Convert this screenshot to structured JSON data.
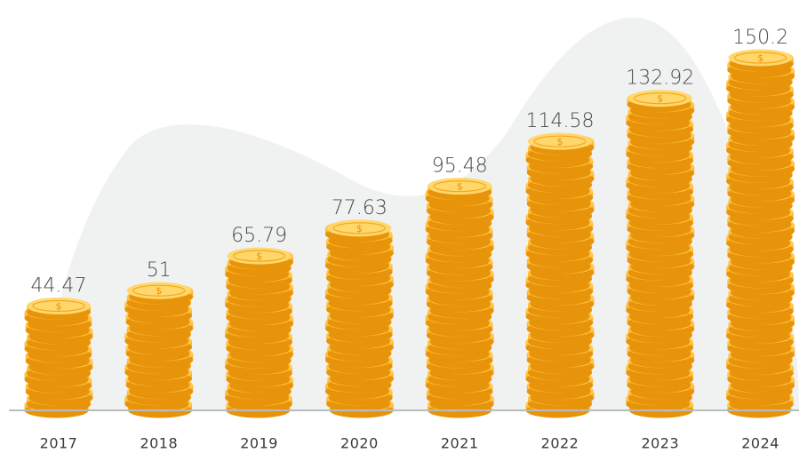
{
  "chart_data": {
    "type": "bar",
    "categories": [
      "2017",
      "2018",
      "2019",
      "2020",
      "2021",
      "2022",
      "2023",
      "2024"
    ],
    "values": [
      44.47,
      51,
      65.79,
      77.63,
      95.48,
      114.58,
      132.92,
      150.2
    ],
    "value_labels": [
      "44.47",
      "51",
      "65.79",
      "77.63",
      "95.48",
      "114.58",
      "132.92",
      "150.2"
    ],
    "title": "",
    "xlabel": "",
    "ylabel": "",
    "grid": false,
    "legend": "none",
    "bar_style": "stacked coins",
    "icon": "coin-icon"
  },
  "colors": {
    "coin_fill": "#FFB52E",
    "coin_light": "#FFC94D",
    "coin_top": "#FFD76A",
    "coin_dark": "#E8940A",
    "coin_rim": "#F5A623",
    "symbol": "#E8940A",
    "background_shape": "#F0F1F1",
    "baseline": "#B9BCBD",
    "value_text": "#4A4A4A",
    "tick_text": "#3A3A3A"
  }
}
